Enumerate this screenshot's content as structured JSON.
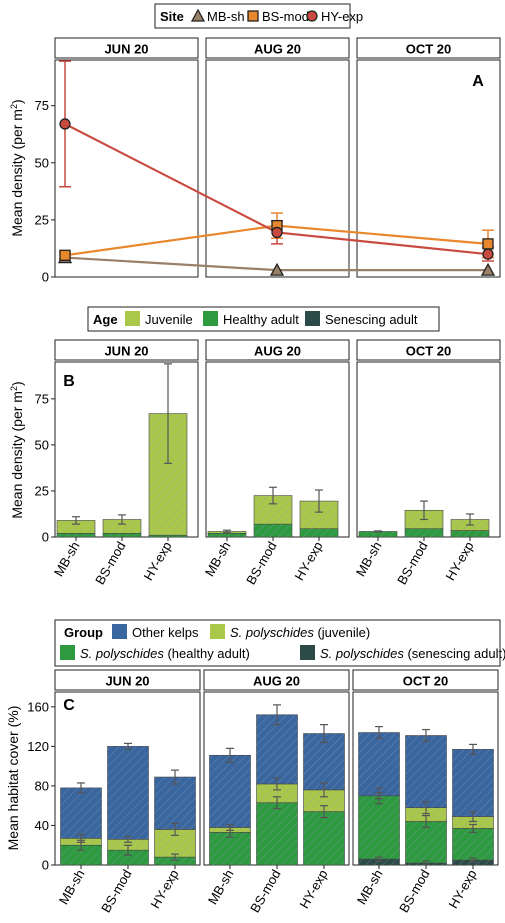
{
  "colors": {
    "MB-sh": "#9a8069",
    "BS-mod": "#e8872c",
    "HY-exp": "#c94a3f",
    "Juvenile": "#a9c84a",
    "Healthy adult": "#2e9a3f",
    "Senescing adult": "#2b4a48",
    "Other kelps": "#3a66a0",
    "hatch": "#8ea0b8",
    "strip_fill": "#ffffff",
    "errorbar": "#555555"
  },
  "chart_data": [
    {
      "panel_label": "A",
      "type": "line",
      "legend": {
        "title": "Site",
        "entries": [
          "MB-sh",
          "BS-mod",
          "HY-exp"
        ],
        "position": "top"
      },
      "facets": [
        "JUN 20",
        "AUG 20",
        "OCT 20"
      ],
      "ylabel": "Mean density (per m²)",
      "ylabel_main": "Mean density (per m",
      "ylabel_sup": "2",
      "ylabel_end": ")",
      "ylim": [
        0,
        95
      ],
      "yticks": [
        "0",
        "25",
        "50",
        "75"
      ],
      "series": [
        {
          "name": "MB-sh",
          "marker": "triangle",
          "values": [
            8.5,
            3,
            3
          ],
          "err": [
            0,
            0,
            0
          ]
        },
        {
          "name": "BS-mod",
          "marker": "square",
          "values": [
            9.5,
            22.5,
            14.5
          ],
          "err": [
            1.5,
            5.5,
            6
          ]
        },
        {
          "name": "HY-exp",
          "marker": "circle",
          "values": [
            67,
            19.5,
            10
          ],
          "err": [
            27.5,
            5,
            3
          ]
        }
      ]
    },
    {
      "panel_label": "B",
      "type": "bar",
      "stacked": true,
      "legend": {
        "title": "Age",
        "entries": [
          "Juvenile",
          "Healthy adult",
          "Senescing adult"
        ],
        "position": "top"
      },
      "facets": [
        "JUN 20",
        "AUG 20",
        "OCT 20"
      ],
      "categories": [
        "MB-sh",
        "BS-mod",
        "HY-exp"
      ],
      "ylabel": "Mean density (per m²)",
      "ylabel_main": "Mean density (per m",
      "ylabel_sup": "2",
      "ylabel_end": ")",
      "ylim": [
        0,
        95
      ],
      "yticks": [
        "0",
        "25",
        "50",
        "75"
      ],
      "groups": [
        {
          "facet": "JUN 20",
          "bars": [
            {
              "cat": "MB-sh",
              "healthy": 2,
              "juvenile": 7,
              "senescing": 0,
              "err": 2
            },
            {
              "cat": "BS-mod",
              "healthy": 2,
              "juvenile": 7.5,
              "senescing": 0,
              "err": 2.5
            },
            {
              "cat": "HY-exp",
              "healthy": 1,
              "juvenile": 66,
              "senescing": 0,
              "err": 27
            }
          ]
        },
        {
          "facet": "AUG 20",
          "bars": [
            {
              "cat": "MB-sh",
              "healthy": 2,
              "juvenile": 1,
              "senescing": 0,
              "err": 0.7
            },
            {
              "cat": "BS-mod",
              "healthy": 7,
              "juvenile": 15.5,
              "senescing": 0,
              "err": 4.5
            },
            {
              "cat": "HY-exp",
              "healthy": 4.5,
              "juvenile": 15,
              "senescing": 0,
              "err": 6
            }
          ]
        },
        {
          "facet": "OCT 20",
          "bars": [
            {
              "cat": "MB-sh",
              "healthy": 3,
              "juvenile": 0,
              "senescing": 0,
              "err": 0.3
            },
            {
              "cat": "BS-mod",
              "healthy": 4.5,
              "juvenile": 10,
              "senescing": 0,
              "err": 5
            },
            {
              "cat": "HY-exp",
              "healthy": 3.5,
              "juvenile": 6,
              "senescing": 0,
              "err": 3
            }
          ]
        }
      ]
    },
    {
      "panel_label": "C",
      "type": "bar",
      "stacked": true,
      "legend": {
        "title": "Group",
        "entries": [
          "Other kelps",
          "S. polyschides (juvenile)",
          "S. polyschides (healthy adult)",
          "S. polyschides (senescing adult)"
        ],
        "position": "top"
      },
      "legend_italic": "S. polyschides",
      "legend_suffix": [
        "",
        " (juvenile)",
        " (healthy adult)",
        " (senescing adult)"
      ],
      "facets": [
        "JUN 20",
        "AUG 20",
        "OCT 20"
      ],
      "categories": [
        "MB-sh",
        "BS-mod",
        "HY-exp"
      ],
      "ylabel": "Mean habitat cover (%)",
      "ylim": [
        0,
        175
      ],
      "yticks": [
        "0",
        "40",
        "80",
        "120",
        "160"
      ],
      "groups": [
        {
          "facet": "JUN 20",
          "bars": [
            {
              "cat": "MB-sh",
              "senescing": 0,
              "healthy": 20,
              "juvenile": 7,
              "other": 51,
              "err_tot": 5,
              "err_top": 4,
              "err_h": 5
            },
            {
              "cat": "BS-mod",
              "senescing": 0,
              "healthy": 15,
              "juvenile": 11,
              "other": 94,
              "err_tot": 3,
              "err_top": 3,
              "err_h": 5
            },
            {
              "cat": "HY-exp",
              "senescing": 0,
              "healthy": 8,
              "juvenile": 28,
              "other": 53,
              "err_tot": 7,
              "err_top": 6,
              "err_h": 3
            }
          ]
        },
        {
          "facet": "AUG 20",
          "bars": [
            {
              "cat": "MB-sh",
              "senescing": 0,
              "healthy": 33,
              "juvenile": 5,
              "other": 73,
              "err_tot": 7,
              "err_top": 3,
              "err_h": 5
            },
            {
              "cat": "BS-mod",
              "senescing": 0,
              "healthy": 63,
              "juvenile": 19,
              "other": 70,
              "err_tot": 10,
              "err_top": 6,
              "err_h": 6
            },
            {
              "cat": "HY-exp",
              "senescing": 0,
              "healthy": 54,
              "juvenile": 22,
              "other": 57,
              "err_tot": 9,
              "err_top": 7,
              "err_h": 6
            }
          ]
        },
        {
          "facet": "OCT 20",
          "bars": [
            {
              "cat": "MB-sh",
              "senescing": 6,
              "healthy": 64,
              "juvenile": 0,
              "other": 64,
              "err_tot": 6,
              "err_top": 8,
              "err_h": 3
            },
            {
              "cat": "BS-mod",
              "senescing": 2,
              "healthy": 42,
              "juvenile": 14,
              "other": 73,
              "err_tot": 6,
              "err_top": 6,
              "err_h": 6
            },
            {
              "cat": "HY-exp",
              "senescing": 5,
              "healthy": 32,
              "juvenile": 12,
              "other": 68,
              "err_tot": 5,
              "err_top": 5,
              "err_h": 4
            }
          ]
        }
      ]
    }
  ]
}
